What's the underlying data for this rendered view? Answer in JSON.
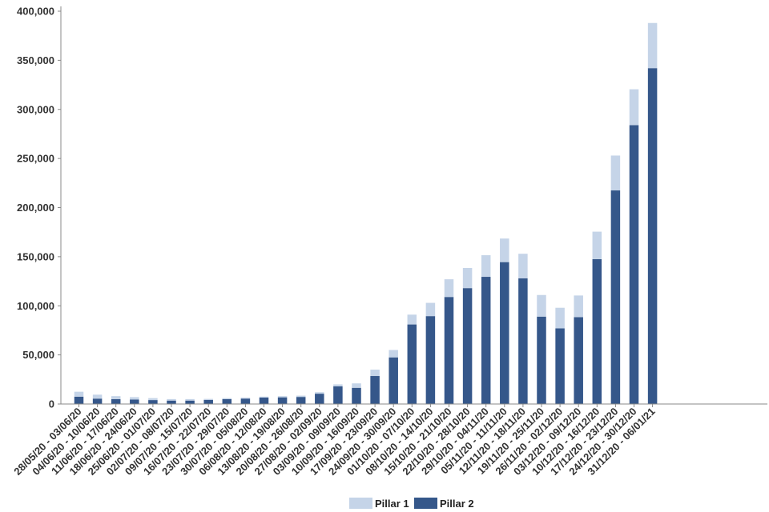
{
  "chart_data": {
    "type": "bar",
    "stacked": true,
    "categories": [
      "28/05/20 - 03/06/20",
      "04/06/20 - 10/06/20",
      "11/06/20 - 17/06/20",
      "18/06/20 - 24/06/20",
      "25/06/20 - 01/07/20",
      "02/07/20 - 08/07/20",
      "09/07/20 - 15/07/20",
      "16/07/20 - 22/07/20",
      "23/07/20 - 29/07/20",
      "30/07/20 - 05/08/20",
      "06/08/20 - 12/08/20",
      "13/08/20 - 19/08/20",
      "20/08/20 - 26/08/20",
      "27/08/20 - 02/09/20",
      "03/09/20 - 09/09/20",
      "10/09/20 - 16/09/20",
      "17/09/20 - 23/09/20",
      "24/09/20 - 30/09/20",
      "01/10/20 - 07/10/20",
      "08/10/20 - 14/10/20",
      "15/10/20 - 21/10/20",
      "22/10/20 - 28/10/20",
      "29/10/20 - 04/11/20",
      "05/11/20 - 11/11/20",
      "12/11/20 - 18/11/20",
      "19/11/20 - 25/11/20",
      "26/11/20 - 02/12/20",
      "03/12/20 - 09/12/20",
      "10/12/20 - 16/12/20",
      "17/12/20 - 23/12/20",
      "24/12/20 - 30/12/20",
      "31/12/20 - 06/01/21"
    ],
    "series": [
      {
        "name": "Pillar 2",
        "color": "#35578a",
        "values": [
          7500,
          5500,
          5000,
          4500,
          4000,
          3500,
          3500,
          4200,
          5000,
          5500,
          6500,
          6800,
          7200,
          10500,
          18000,
          16500,
          28500,
          47500,
          81000,
          89500,
          109000,
          118000,
          129500,
          144500,
          128000,
          89000,
          77000,
          88500,
          147500,
          217500,
          284000,
          342000
        ]
      },
      {
        "name": "Pillar 1",
        "color": "#c5d4e8",
        "values": [
          5000,
          4000,
          3000,
          2500,
          2000,
          1500,
          1500,
          1000,
          1000,
          1000,
          1000,
          1200,
          1300,
          1500,
          2000,
          4500,
          6500,
          7500,
          10000,
          13500,
          18000,
          20500,
          22000,
          24000,
          25000,
          22000,
          21000,
          22000,
          28000,
          35500,
          36500,
          46000
        ]
      }
    ],
    "yticks": [
      0,
      50000,
      100000,
      150000,
      200000,
      250000,
      300000,
      350000,
      400000
    ],
    "ytick_labels": [
      "0",
      "50,000",
      "100,000",
      "150,000",
      "200,000",
      "250,000",
      "300,000",
      "350,000",
      "400,000"
    ],
    "ylim": [
      0,
      400000
    ],
    "title": "",
    "xlabel": "",
    "ylabel": "",
    "grid": false,
    "legend": "bottom-center"
  }
}
